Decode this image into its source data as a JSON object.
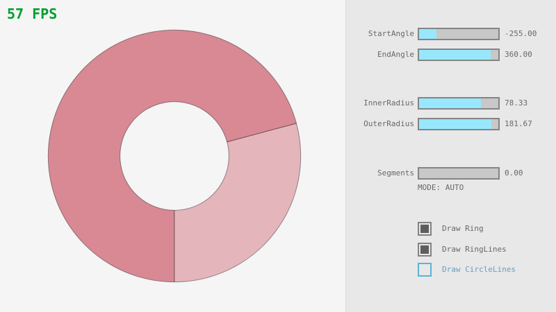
{
  "fps": {
    "label": "57 FPS",
    "color": "#009e2f"
  },
  "ring": {
    "start_angle": -255.0,
    "end_angle": 360.0,
    "inner_radius": 78.33,
    "outer_radius": 181.67,
    "segments": 0,
    "mode": "AUTO",
    "sector_light_color": "#e5b5bc",
    "sector_dark_color": "#d98994",
    "outline_color": "rgba(0,0,0,0.4)"
  },
  "panel": {
    "background_color": "#e8e8e8",
    "slider_fill_color": "#97e8ff",
    "slider_track_color": "#c8c8c8",
    "slider_border_color": "#848484",
    "text_color": "#686868",
    "focus_color": "#5bb2d9",
    "focus_text_color": "#6c9bbc",
    "sliders": [
      {
        "id": "start-angle",
        "label": "StartAngle",
        "value": "-255.00",
        "fill_pct": 21.7
      },
      {
        "id": "end-angle",
        "label": "EndAngle",
        "value": "360.00",
        "fill_pct": 90.0
      },
      {
        "id": "inner-radius",
        "label": "InnerRadius",
        "value": "78.33",
        "fill_pct": 78.3
      },
      {
        "id": "outer-radius",
        "label": "OuterRadius",
        "value": "181.67",
        "fill_pct": 90.8
      },
      {
        "id": "segments",
        "label": "Segments",
        "value": "0.00",
        "fill_pct": 0
      }
    ],
    "mode_text": "MODE: AUTO",
    "checkboxes": [
      {
        "label": "Draw Ring",
        "checked": true,
        "focused": false
      },
      {
        "label": "Draw RingLines",
        "checked": true,
        "focused": false
      },
      {
        "label": "Draw CircleLines",
        "checked": false,
        "focused": true
      }
    ]
  }
}
